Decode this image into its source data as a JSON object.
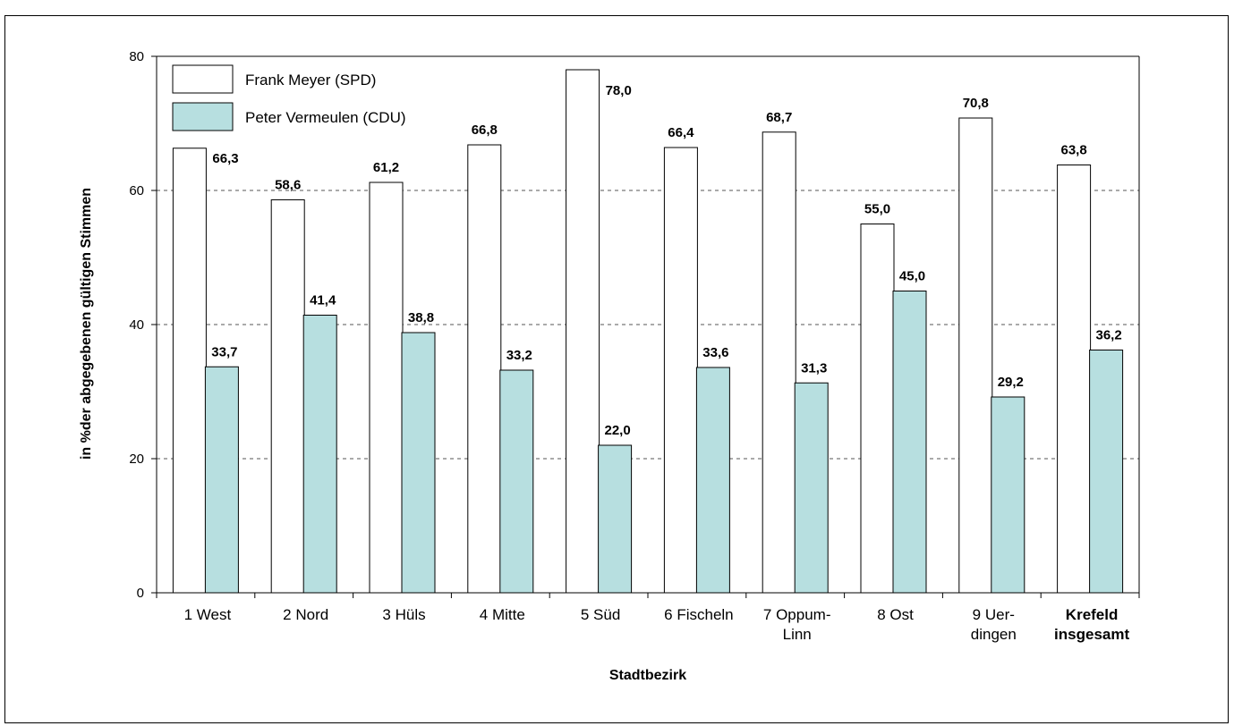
{
  "chart_data": {
    "type": "bar",
    "title": "",
    "categories": [
      [
        "1 West"
      ],
      [
        "2 Nord"
      ],
      [
        "3 Hüls"
      ],
      [
        "4 Mitte"
      ],
      [
        "5 Süd"
      ],
      [
        "6 Fischeln"
      ],
      [
        "7 Oppum-",
        "Linn"
      ],
      [
        "8 Ost"
      ],
      [
        "9 Uer-",
        "dingen"
      ],
      [
        "Krefeld",
        "insgesamt"
      ]
    ],
    "series": [
      {
        "name": "Frank Meyer (SPD)",
        "color": "#ffffff",
        "values": [
          66.3,
          58.6,
          61.2,
          66.8,
          78.0,
          66.4,
          68.7,
          55.0,
          70.8,
          63.8
        ],
        "labels": [
          "66,3",
          "58,6",
          "61,2",
          "66,8",
          "78,0",
          "66,4",
          "68,7",
          "55,0",
          "70,8",
          "63,8"
        ]
      },
      {
        "name": "Peter Vermeulen (CDU)",
        "color": "#b7dfe0",
        "values": [
          33.7,
          41.4,
          38.8,
          33.2,
          22.0,
          33.6,
          31.3,
          45.0,
          29.2,
          36.2
        ],
        "labels": [
          "33,7",
          "41,4",
          "38,8",
          "33,2",
          "22,0",
          "33,6",
          "31,3",
          "45,0",
          "29,2",
          "36,2"
        ]
      }
    ],
    "xlabel": "Stadtbezirk",
    "ylabel": "in %der abgegebenen gültigen Stimmen",
    "ylim": [
      0,
      80
    ],
    "yticks": [
      0,
      20,
      40,
      60,
      80
    ],
    "grid": "dashed horizontal",
    "legend": "top-left"
  }
}
